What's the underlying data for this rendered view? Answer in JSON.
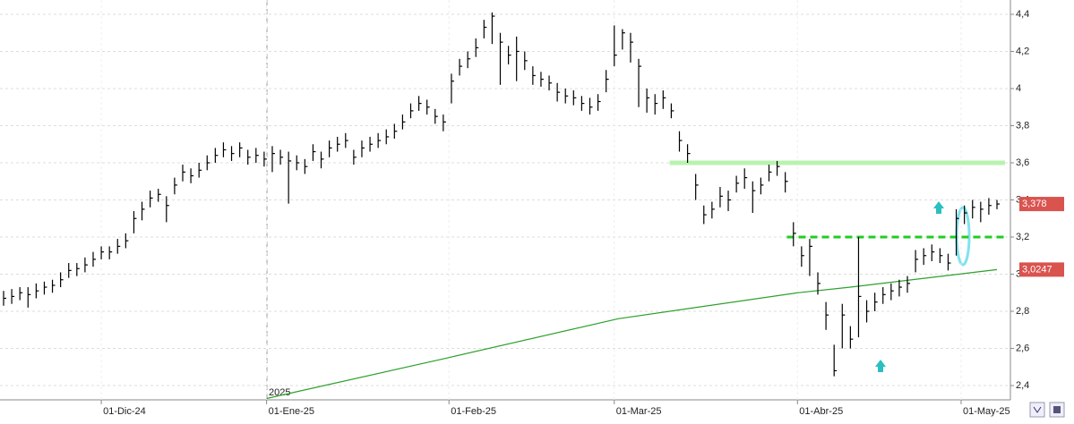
{
  "chart_data": {
    "type": "ohlc",
    "annotations": [
      "2025"
    ],
    "xlim": [
      -0.44,
      123.65
    ],
    "xticks": [
      {
        "value": 12.0,
        "label": "01-Dic-24"
      },
      {
        "value": 32.3,
        "label": "01-Ene-25"
      },
      {
        "value": 54.7,
        "label": "01-Feb-25"
      },
      {
        "value": 75.0,
        "label": "01-Mar-25"
      },
      {
        "value": 97.5,
        "label": "01-Abr-25"
      },
      {
        "value": 117.6,
        "label": "01-May-25"
      }
    ],
    "ylim": [
      2.323,
      4.477
    ],
    "yticks": [
      {
        "value": 2.4,
        "label": "2,4"
      },
      {
        "value": 2.6,
        "label": "2,6"
      },
      {
        "value": 2.8,
        "label": "2,8"
      },
      {
        "value": 3,
        "label": "3"
      },
      {
        "value": 3.2,
        "label": "3,2"
      },
      {
        "value": 3.4,
        "label": "3,4"
      },
      {
        "value": 3.6,
        "label": "3,6"
      },
      {
        "value": 3.8,
        "label": "3,8"
      },
      {
        "value": 4,
        "label": "4"
      },
      {
        "value": 4.2,
        "label": "4,2"
      },
      {
        "value": 4.4,
        "label": "4,4"
      }
    ],
    "grid": true,
    "color": "#000000",
    "high": [
      2.91,
      2.92,
      2.93,
      2.93,
      2.95,
      2.96,
      2.97,
      3.01,
      3.06,
      3.06,
      3.09,
      3.12,
      3.15,
      3.15,
      3.19,
      3.22,
      3.34,
      3.39,
      3.45,
      3.46,
      3.42,
      3.52,
      3.59,
      3.57,
      3.6,
      3.64,
      3.68,
      3.71,
      3.69,
      3.71,
      3.67,
      3.68,
      3.66,
      3.69,
      3.67,
      3.66,
      3.64,
      3.62,
      3.7,
      3.66,
      3.72,
      3.74,
      3.76,
      3.67,
      3.72,
      3.74,
      3.76,
      3.78,
      3.81,
      3.86,
      3.92,
      3.96,
      3.94,
      3.89,
      3.86,
      4.08,
      4.16,
      4.2,
      4.27,
      4.37,
      4.41,
      4.3,
      4.23,
      4.28,
      4.2,
      4.12,
      4.09,
      4.07,
      4.03,
      4.0,
      3.99,
      3.96,
      3.95,
      3.97,
      4.1,
      4.34,
      4.32,
      4.3,
      4.16,
      4.0,
      3.97,
      3.99,
      3.92,
      3.77,
      3.7,
      3.54,
      3.37,
      3.39,
      3.47,
      3.45,
      3.53,
      3.57,
      3.5,
      3.52,
      3.59,
      3.61,
      3.55,
      3.28,
      3.15,
      3.19,
      3.01,
      2.85,
      2.62,
      2.84,
      2.72,
      3.2,
      2.86,
      2.9,
      2.93,
      2.95,
      2.97,
      2.99,
      3.13,
      3.14,
      3.16,
      3.14,
      3.11,
      3.35,
      3.37,
      3.4,
      3.39,
      3.41,
      3.4
    ],
    "low": [
      2.83,
      2.84,
      2.86,
      2.82,
      2.87,
      2.89,
      2.9,
      2.93,
      2.98,
      2.99,
      3.01,
      3.04,
      3.08,
      3.08,
      3.11,
      3.14,
      3.22,
      3.29,
      3.36,
      3.39,
      3.28,
      3.43,
      3.5,
      3.49,
      3.52,
      3.56,
      3.6,
      3.63,
      3.61,
      3.63,
      3.59,
      3.6,
      3.58,
      3.55,
      3.59,
      3.38,
      3.56,
      3.54,
      3.61,
      3.57,
      3.63,
      3.66,
      3.68,
      3.59,
      3.63,
      3.66,
      3.68,
      3.7,
      3.73,
      3.78,
      3.84,
      3.88,
      3.86,
      3.81,
      3.77,
      3.92,
      4.07,
      4.11,
      4.17,
      4.27,
      4.24,
      4.02,
      4.13,
      4.04,
      4.1,
      4.02,
      4.01,
      3.99,
      3.93,
      3.92,
      3.91,
      3.88,
      3.86,
      3.88,
      3.98,
      4.12,
      4.21,
      4.14,
      3.9,
      3.87,
      3.86,
      3.89,
      3.84,
      3.66,
      3.6,
      3.4,
      3.27,
      3.3,
      3.36,
      3.34,
      3.44,
      3.46,
      3.33,
      3.43,
      3.5,
      3.53,
      3.44,
      3.15,
      3.04,
      2.99,
      2.89,
      2.7,
      2.45,
      2.6,
      2.6,
      2.66,
      2.74,
      2.8,
      2.84,
      2.86,
      2.88,
      2.9,
      3.01,
      3.05,
      3.07,
      3.06,
      3.02,
      3.1,
      3.27,
      3.3,
      3.28,
      3.32,
      3.35
    ],
    "close": [
      2.87,
      2.88,
      2.9,
      2.89,
      2.91,
      2.93,
      2.94,
      2.97,
      3.02,
      3.03,
      3.05,
      3.08,
      3.12,
      3.12,
      3.15,
      3.18,
      3.3,
      3.35,
      3.41,
      3.43,
      3.37,
      3.48,
      3.55,
      3.53,
      3.56,
      3.6,
      3.64,
      3.67,
      3.65,
      3.68,
      3.63,
      3.64,
      3.62,
      3.65,
      3.63,
      3.61,
      3.6,
      3.58,
      3.66,
      3.62,
      3.68,
      3.7,
      3.72,
      3.63,
      3.68,
      3.7,
      3.72,
      3.74,
      3.77,
      3.82,
      3.88,
      3.92,
      3.9,
      3.85,
      3.82,
      4.04,
      4.12,
      4.16,
      4.22,
      4.33,
      4.39,
      4.25,
      4.18,
      4.2,
      4.15,
      4.07,
      4.05,
      4.03,
      3.98,
      3.96,
      3.95,
      3.92,
      3.9,
      3.93,
      4.05,
      4.18,
      4.3,
      4.25,
      4.12,
      3.95,
      3.92,
      3.95,
      3.88,
      3.72,
      3.65,
      3.48,
      3.32,
      3.35,
      3.42,
      3.4,
      3.49,
      3.52,
      3.45,
      3.48,
      3.55,
      3.58,
      3.5,
      3.22,
      3.1,
      3.15,
      2.95,
      2.78,
      2.48,
      2.78,
      2.65,
      2.88,
      2.8,
      2.85,
      2.89,
      2.91,
      2.93,
      2.95,
      3.08,
      3.1,
      3.12,
      3.1,
      3.06,
      3.3,
      3.33,
      3.36,
      3.35,
      3.37,
      3.378
    ],
    "moving_average": {
      "color": "#2ca02c",
      "x": [
        32.3,
        54.6,
        75.5,
        97.5,
        104,
        122
      ],
      "values": [
        2.33,
        2.55,
        2.76,
        2.9,
        2.93,
        3.0247
      ]
    },
    "levels": [
      {
        "value": 3.6,
        "from": 81.8,
        "color": "#b9f2b0",
        "dash": false,
        "width": 5
      },
      {
        "value": 3.2,
        "from": 96.2,
        "color": "#22cc22",
        "dash": true,
        "width": 3
      }
    ],
    "value_labels": [
      {
        "value": 3.378,
        "label": "3,378"
      },
      {
        "value": 3.0247,
        "label": "3,0247"
      }
    ],
    "label_color": "#d9534f"
  }
}
